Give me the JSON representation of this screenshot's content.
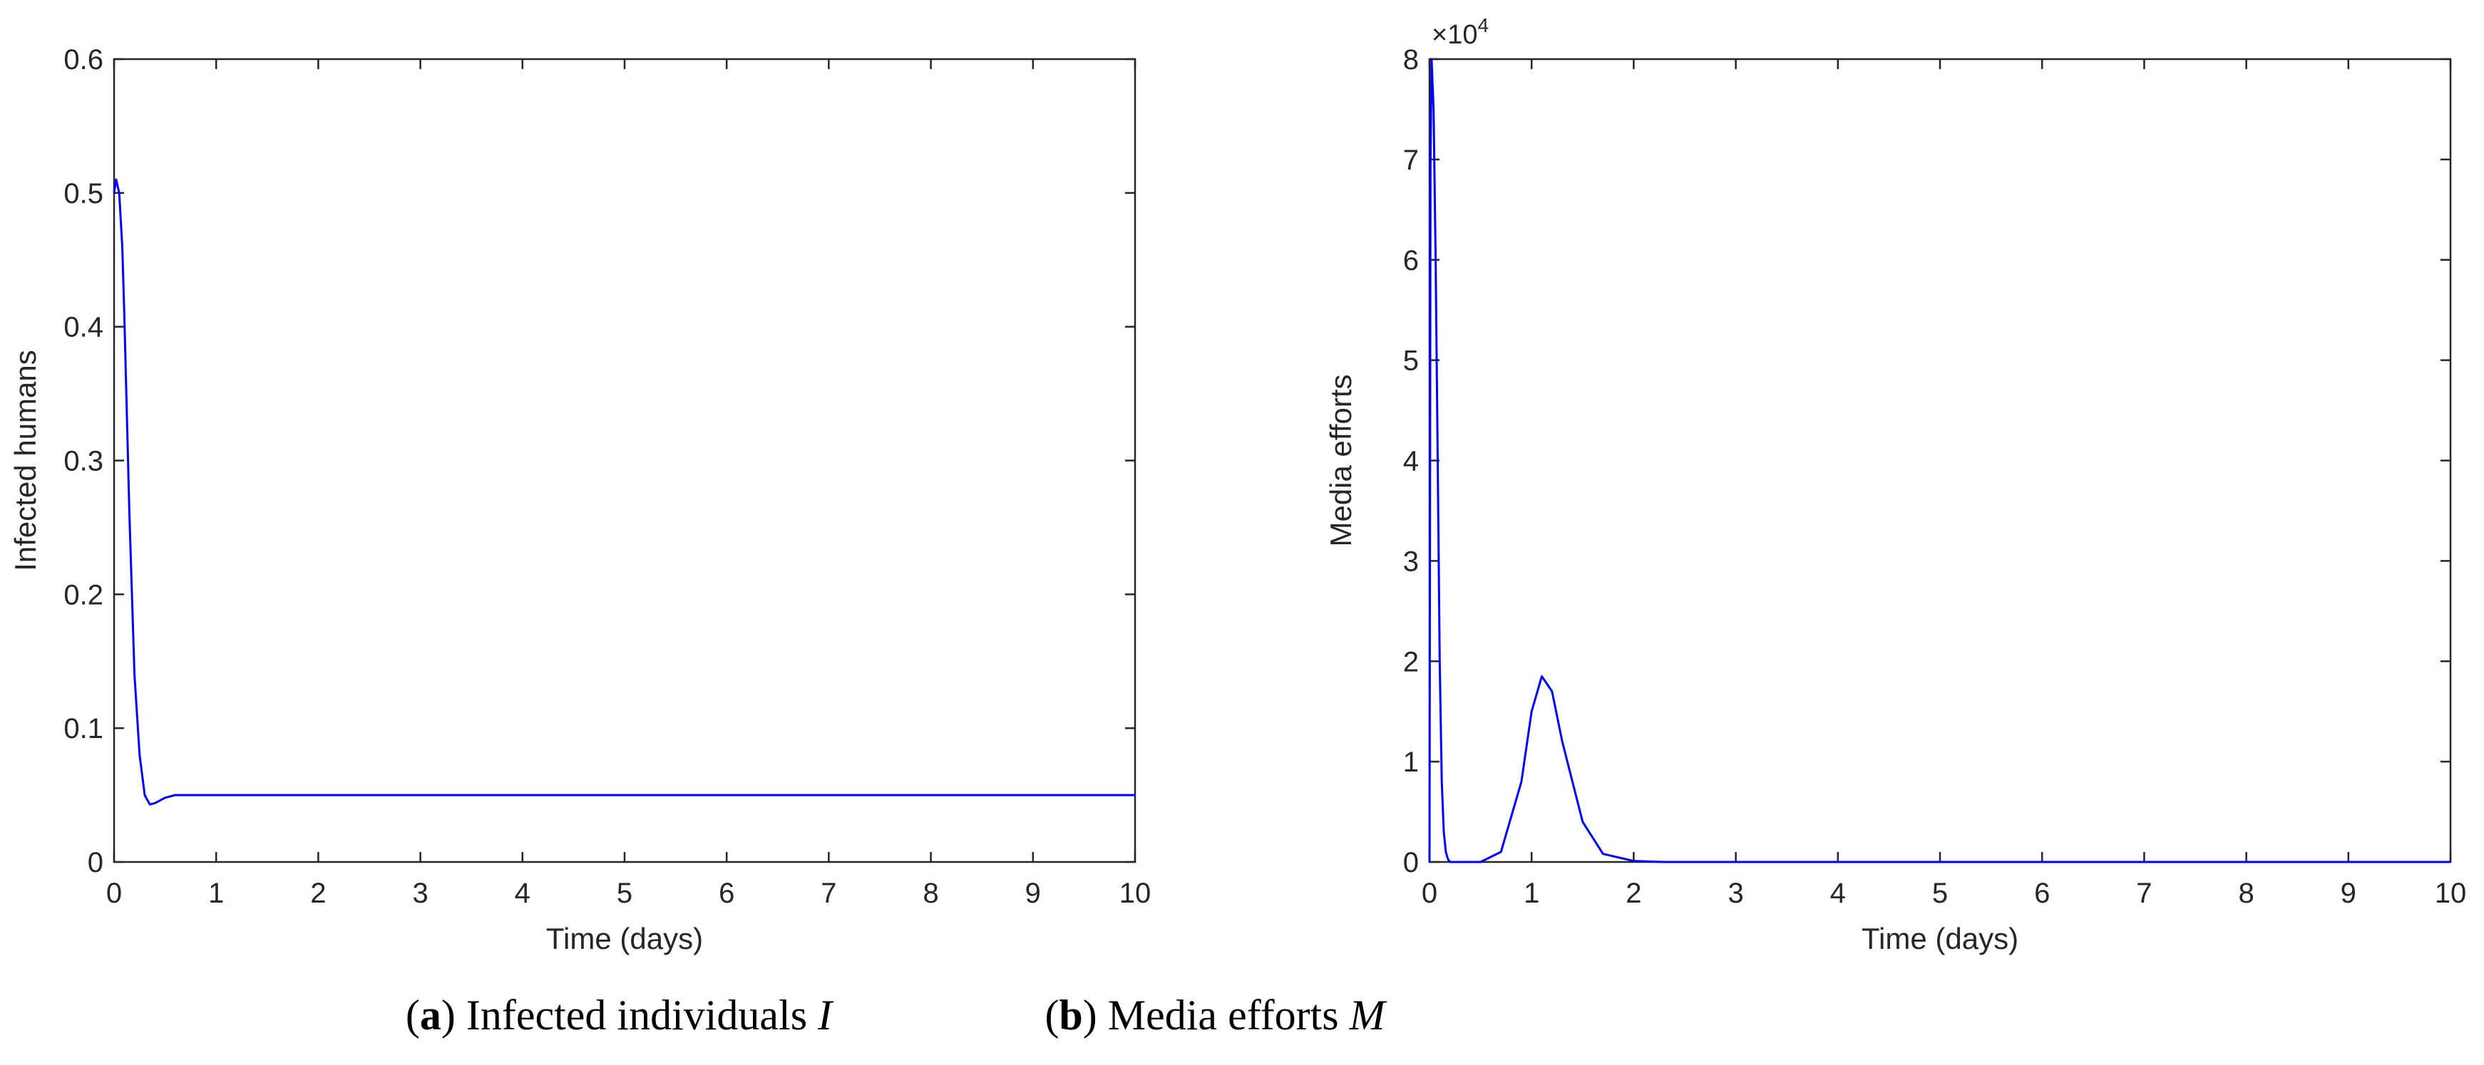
{
  "chart_data": [
    {
      "id": "a",
      "type": "line",
      "xlabel": "Time (days)",
      "ylabel": "Infected humans",
      "xlim": [
        0,
        10
      ],
      "ylim": [
        0,
        0.6
      ],
      "xticks": [
        0,
        1,
        2,
        3,
        4,
        5,
        6,
        7,
        8,
        9,
        10
      ],
      "yticks": [
        0,
        0.1,
        0.2,
        0.3,
        0.4,
        0.5,
        0.6
      ],
      "ytick_labels": [
        "0",
        "0.1",
        "0.2",
        "0.3",
        "0.4",
        "0.5",
        "0.6"
      ],
      "exponent_label": "",
      "grid": false,
      "line_color": "#0000ff",
      "series": [
        {
          "x": [
            0,
            0.02,
            0.05,
            0.08,
            0.1,
            0.15,
            0.2,
            0.25,
            0.3,
            0.35,
            0.4,
            0.5,
            0.6,
            0.8,
            1,
            2,
            3,
            4,
            5,
            6,
            7,
            8,
            9,
            10
          ],
          "y": [
            0.5,
            0.51,
            0.5,
            0.46,
            0.41,
            0.26,
            0.14,
            0.08,
            0.05,
            0.043,
            0.044,
            0.048,
            0.05,
            0.05,
            0.05,
            0.05,
            0.05,
            0.05,
            0.05,
            0.05,
            0.05,
            0.05,
            0.05,
            0.05
          ]
        }
      ],
      "caption": {
        "letter": "a",
        "text": " Infected individuals ",
        "symbol": "I"
      }
    },
    {
      "id": "b",
      "type": "line",
      "xlabel": "Time (days)",
      "ylabel": "Media efforts",
      "xlim": [
        0,
        10
      ],
      "ylim": [
        0,
        80000
      ],
      "xticks": [
        0,
        1,
        2,
        3,
        4,
        5,
        6,
        7,
        8,
        9,
        10
      ],
      "yticks": [
        0,
        10000,
        20000,
        30000,
        40000,
        50000,
        60000,
        70000,
        80000
      ],
      "ytick_labels": [
        "0",
        "1",
        "2",
        "3",
        "4",
        "5",
        "6",
        "7",
        "8"
      ],
      "exponent_label": "×10",
      "exponent_power": "4",
      "grid": false,
      "line_color": "#0000ff",
      "series": [
        {
          "x": [
            0,
            0.01,
            0.02,
            0.04,
            0.06,
            0.08,
            0.1,
            0.12,
            0.14,
            0.16,
            0.18,
            0.2,
            0.3,
            0.5,
            0.7,
            0.9,
            1.0,
            1.1,
            1.2,
            1.3,
            1.5,
            1.7,
            2.0,
            2.3,
            2.6,
            3,
            4,
            5,
            6,
            7,
            8,
            9,
            10
          ],
          "y": [
            0,
            70000,
            80000,
            75000,
            60000,
            40000,
            20000,
            8000,
            3000,
            1000,
            300,
            0,
            0,
            0,
            1000,
            8000,
            15000,
            18500,
            17000,
            12000,
            4000,
            800,
            100,
            0,
            0,
            0,
            0,
            0,
            0,
            0,
            0,
            0,
            0
          ]
        }
      ],
      "caption": {
        "letter": "b",
        "text": " Media efforts ",
        "symbol": "M"
      }
    }
  ]
}
